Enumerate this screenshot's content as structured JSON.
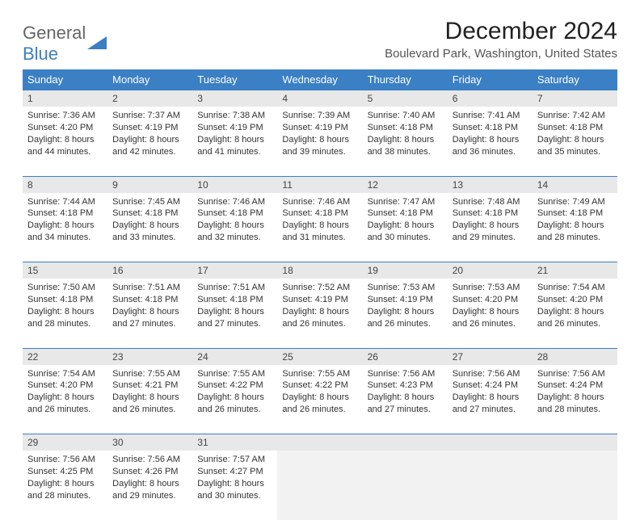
{
  "logo": {
    "line1": "General",
    "line2": "Blue"
  },
  "title": "December 2024",
  "location": "Boulevard Park, Washington, United States",
  "colors": {
    "header_bg": "#3b7fc4",
    "header_text": "#ffffff",
    "daynum_bg": "#e8e8e8",
    "row_divider": "#3b7fc4",
    "body_text": "#333333",
    "empty_bg": "#f2f2f2"
  },
  "weekdays": [
    "Sunday",
    "Monday",
    "Tuesday",
    "Wednesday",
    "Thursday",
    "Friday",
    "Saturday"
  ],
  "weeks": [
    [
      {
        "day": "1",
        "sunrise": "Sunrise: 7:36 AM",
        "sunset": "Sunset: 4:20 PM",
        "daylight": "Daylight: 8 hours and 44 minutes."
      },
      {
        "day": "2",
        "sunrise": "Sunrise: 7:37 AM",
        "sunset": "Sunset: 4:19 PM",
        "daylight": "Daylight: 8 hours and 42 minutes."
      },
      {
        "day": "3",
        "sunrise": "Sunrise: 7:38 AM",
        "sunset": "Sunset: 4:19 PM",
        "daylight": "Daylight: 8 hours and 41 minutes."
      },
      {
        "day": "4",
        "sunrise": "Sunrise: 7:39 AM",
        "sunset": "Sunset: 4:19 PM",
        "daylight": "Daylight: 8 hours and 39 minutes."
      },
      {
        "day": "5",
        "sunrise": "Sunrise: 7:40 AM",
        "sunset": "Sunset: 4:18 PM",
        "daylight": "Daylight: 8 hours and 38 minutes."
      },
      {
        "day": "6",
        "sunrise": "Sunrise: 7:41 AM",
        "sunset": "Sunset: 4:18 PM",
        "daylight": "Daylight: 8 hours and 36 minutes."
      },
      {
        "day": "7",
        "sunrise": "Sunrise: 7:42 AM",
        "sunset": "Sunset: 4:18 PM",
        "daylight": "Daylight: 8 hours and 35 minutes."
      }
    ],
    [
      {
        "day": "8",
        "sunrise": "Sunrise: 7:44 AM",
        "sunset": "Sunset: 4:18 PM",
        "daylight": "Daylight: 8 hours and 34 minutes."
      },
      {
        "day": "9",
        "sunrise": "Sunrise: 7:45 AM",
        "sunset": "Sunset: 4:18 PM",
        "daylight": "Daylight: 8 hours and 33 minutes."
      },
      {
        "day": "10",
        "sunrise": "Sunrise: 7:46 AM",
        "sunset": "Sunset: 4:18 PM",
        "daylight": "Daylight: 8 hours and 32 minutes."
      },
      {
        "day": "11",
        "sunrise": "Sunrise: 7:46 AM",
        "sunset": "Sunset: 4:18 PM",
        "daylight": "Daylight: 8 hours and 31 minutes."
      },
      {
        "day": "12",
        "sunrise": "Sunrise: 7:47 AM",
        "sunset": "Sunset: 4:18 PM",
        "daylight": "Daylight: 8 hours and 30 minutes."
      },
      {
        "day": "13",
        "sunrise": "Sunrise: 7:48 AM",
        "sunset": "Sunset: 4:18 PM",
        "daylight": "Daylight: 8 hours and 29 minutes."
      },
      {
        "day": "14",
        "sunrise": "Sunrise: 7:49 AM",
        "sunset": "Sunset: 4:18 PM",
        "daylight": "Daylight: 8 hours and 28 minutes."
      }
    ],
    [
      {
        "day": "15",
        "sunrise": "Sunrise: 7:50 AM",
        "sunset": "Sunset: 4:18 PM",
        "daylight": "Daylight: 8 hours and 28 minutes."
      },
      {
        "day": "16",
        "sunrise": "Sunrise: 7:51 AM",
        "sunset": "Sunset: 4:18 PM",
        "daylight": "Daylight: 8 hours and 27 minutes."
      },
      {
        "day": "17",
        "sunrise": "Sunrise: 7:51 AM",
        "sunset": "Sunset: 4:18 PM",
        "daylight": "Daylight: 8 hours and 27 minutes."
      },
      {
        "day": "18",
        "sunrise": "Sunrise: 7:52 AM",
        "sunset": "Sunset: 4:19 PM",
        "daylight": "Daylight: 8 hours and 26 minutes."
      },
      {
        "day": "19",
        "sunrise": "Sunrise: 7:53 AM",
        "sunset": "Sunset: 4:19 PM",
        "daylight": "Daylight: 8 hours and 26 minutes."
      },
      {
        "day": "20",
        "sunrise": "Sunrise: 7:53 AM",
        "sunset": "Sunset: 4:20 PM",
        "daylight": "Daylight: 8 hours and 26 minutes."
      },
      {
        "day": "21",
        "sunrise": "Sunrise: 7:54 AM",
        "sunset": "Sunset: 4:20 PM",
        "daylight": "Daylight: 8 hours and 26 minutes."
      }
    ],
    [
      {
        "day": "22",
        "sunrise": "Sunrise: 7:54 AM",
        "sunset": "Sunset: 4:20 PM",
        "daylight": "Daylight: 8 hours and 26 minutes."
      },
      {
        "day": "23",
        "sunrise": "Sunrise: 7:55 AM",
        "sunset": "Sunset: 4:21 PM",
        "daylight": "Daylight: 8 hours and 26 minutes."
      },
      {
        "day": "24",
        "sunrise": "Sunrise: 7:55 AM",
        "sunset": "Sunset: 4:22 PM",
        "daylight": "Daylight: 8 hours and 26 minutes."
      },
      {
        "day": "25",
        "sunrise": "Sunrise: 7:55 AM",
        "sunset": "Sunset: 4:22 PM",
        "daylight": "Daylight: 8 hours and 26 minutes."
      },
      {
        "day": "26",
        "sunrise": "Sunrise: 7:56 AM",
        "sunset": "Sunset: 4:23 PM",
        "daylight": "Daylight: 8 hours and 27 minutes."
      },
      {
        "day": "27",
        "sunrise": "Sunrise: 7:56 AM",
        "sunset": "Sunset: 4:24 PM",
        "daylight": "Daylight: 8 hours and 27 minutes."
      },
      {
        "day": "28",
        "sunrise": "Sunrise: 7:56 AM",
        "sunset": "Sunset: 4:24 PM",
        "daylight": "Daylight: 8 hours and 28 minutes."
      }
    ],
    [
      {
        "day": "29",
        "sunrise": "Sunrise: 7:56 AM",
        "sunset": "Sunset: 4:25 PM",
        "daylight": "Daylight: 8 hours and 28 minutes."
      },
      {
        "day": "30",
        "sunrise": "Sunrise: 7:56 AM",
        "sunset": "Sunset: 4:26 PM",
        "daylight": "Daylight: 8 hours and 29 minutes."
      },
      {
        "day": "31",
        "sunrise": "Sunrise: 7:57 AM",
        "sunset": "Sunset: 4:27 PM",
        "daylight": "Daylight: 8 hours and 30 minutes."
      },
      null,
      null,
      null,
      null
    ]
  ]
}
